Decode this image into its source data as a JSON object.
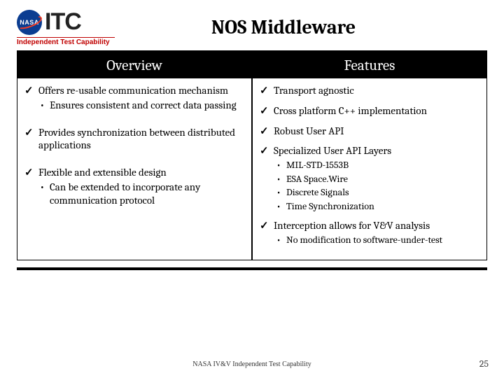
{
  "logo": {
    "nasa": "NASA",
    "itc": "ITC",
    "subtitle": "Independent Test Capability"
  },
  "title": "NOS Middleware",
  "columns": {
    "left": {
      "header": "Overview",
      "items": [
        {
          "text": "Offers re-usable communication mechanism",
          "sub": [
            "Ensures consistent and correct data passing"
          ]
        },
        {
          "text": "Provides synchronization between distributed applications",
          "sub": []
        },
        {
          "text": "Flexible and extensible design",
          "sub": [
            "Can be extended to incorporate any communication protocol"
          ]
        }
      ]
    },
    "right": {
      "header": "Features",
      "items": [
        {
          "text": "Transport agnostic",
          "sub": []
        },
        {
          "text": "Cross platform C++ implementation",
          "sub": []
        },
        {
          "text": "Robust User API",
          "sub": []
        },
        {
          "text": "Specialized User API Layers",
          "sub": [
            "MIL-STD-1553B",
            "ESA Space.Wire",
            "Discrete Signals",
            "Time Synchronization"
          ]
        },
        {
          "text": "Interception allows for V&V analysis",
          "sub": [
            "No modification to software-under-test"
          ]
        }
      ]
    }
  },
  "footer": "NASA IV&V Independent Test Capability",
  "page_number": "25"
}
